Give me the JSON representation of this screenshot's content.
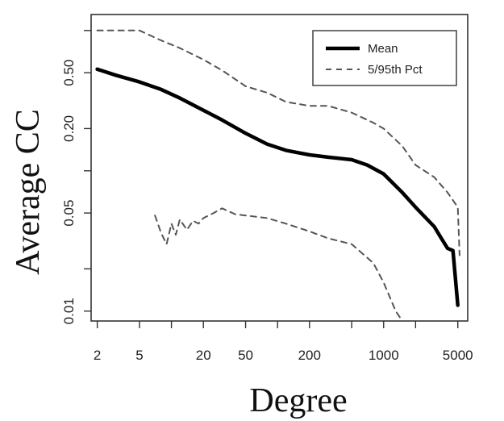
{
  "chart_data": {
    "type": "line",
    "title": "",
    "xlabel": "Degree",
    "ylabel": "Average CC",
    "xscale": "log",
    "yscale": "log",
    "xlim": [
      1.75,
      6200
    ],
    "ylim": [
      0.0085,
      1.3
    ],
    "grid": false,
    "legend_position": "top-right",
    "x_ticks": [
      2,
      5,
      20,
      50,
      200,
      1000,
      5000
    ],
    "x_tick_labels": [
      "2",
      "5",
      "20",
      "50",
      "200",
      "1000",
      "5000"
    ],
    "x_minor_ticks": [
      10,
      100,
      500,
      2000
    ],
    "y_ticks": [
      0.01,
      0.05,
      0.2,
      0.5
    ],
    "y_tick_labels": [
      "0.01",
      "0.05",
      "0.20",
      "0.50"
    ],
    "y_minor_ticks": [
      0.02,
      0.1,
      1.0
    ],
    "series": [
      {
        "name": "Mean",
        "style": "solid",
        "color": "#000000",
        "x": [
          2,
          3,
          5,
          8,
          12,
          20,
          30,
          50,
          80,
          120,
          200,
          300,
          500,
          700,
          1000,
          1500,
          2000,
          3000,
          3500,
          4000,
          4500,
          5000
        ],
        "y": [
          0.53,
          0.48,
          0.43,
          0.38,
          0.33,
          0.27,
          0.23,
          0.185,
          0.155,
          0.14,
          0.13,
          0.125,
          0.12,
          0.11,
          0.095,
          0.07,
          0.055,
          0.04,
          0.033,
          0.028,
          0.027,
          0.011
        ]
      },
      {
        "name": "5/95th Pct",
        "style": "dashed",
        "color": "#555555",
        "x": [
          2,
          3,
          5,
          8,
          12,
          20,
          30,
          50,
          80,
          120,
          200,
          300,
          500,
          800,
          1000,
          1500,
          2000,
          3000,
          4000,
          5000,
          5200
        ],
        "y": [
          1.0,
          1.0,
          1.0,
          0.85,
          0.75,
          0.62,
          0.52,
          0.4,
          0.36,
          0.31,
          0.29,
          0.29,
          0.26,
          0.22,
          0.2,
          0.15,
          0.11,
          0.09,
          0.07,
          0.055,
          0.025
        ]
      },
      {
        "name": "5/95th Pct",
        "style": "dashed",
        "color": "#555555",
        "x": [
          7,
          8,
          9,
          10,
          11,
          12,
          14,
          16,
          18,
          20,
          25,
          30,
          40,
          50,
          80,
          120,
          200,
          300,
          500,
          800,
          1000,
          1300,
          1500
        ],
        "y": [
          0.048,
          0.036,
          0.03,
          0.042,
          0.035,
          0.045,
          0.038,
          0.044,
          0.042,
          0.046,
          0.05,
          0.054,
          0.049,
          0.048,
          0.046,
          0.042,
          0.037,
          0.033,
          0.03,
          0.022,
          0.016,
          0.01,
          0.0085
        ]
      }
    ],
    "legend": {
      "entries": [
        {
          "label": "Mean",
          "style": "solid"
        },
        {
          "label": "5/95th Pct",
          "style": "dashed"
        }
      ]
    }
  }
}
